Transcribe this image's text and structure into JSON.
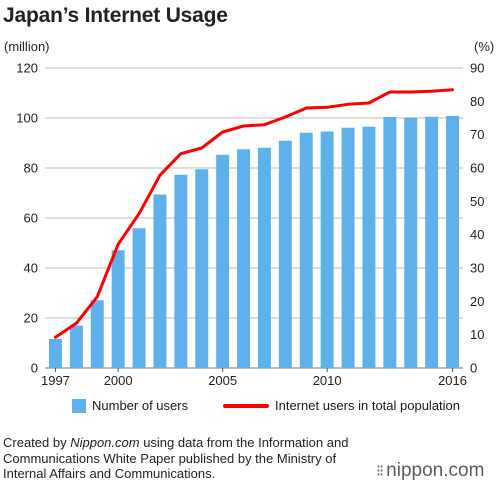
{
  "title": "Japan’s Internet Usage",
  "chart_data": {
    "type": "bar",
    "title": "Japan’s Internet Usage",
    "y_left_unit": "(million)",
    "y_right_unit": "(%)",
    "ylim_left": [
      0,
      120
    ],
    "ylim_right": [
      0,
      90
    ],
    "y_left_ticks": [
      0,
      20,
      40,
      60,
      80,
      100,
      120
    ],
    "y_right_ticks": [
      0,
      10,
      20,
      30,
      40,
      50,
      60,
      70,
      80,
      90
    ],
    "x_tick_labels": [
      "1997",
      "2000",
      "2005",
      "2010",
      "2016"
    ],
    "x": [
      1997,
      1998,
      1999,
      2000,
      2001,
      2002,
      2003,
      2004,
      2005,
      2006,
      2007,
      2008,
      2009,
      2010,
      2011,
      2012,
      2013,
      2014,
      2015,
      2016
    ],
    "grid": true,
    "legend_position": "bottom",
    "series": [
      {
        "name": "Number of users",
        "type": "bar",
        "axis": "left",
        "color": "#5eb1ea",
        "values": [
          11.6,
          17.0,
          27.1,
          47.1,
          55.9,
          69.4,
          77.3,
          79.5,
          85.3,
          87.5,
          88.1,
          90.9,
          94.1,
          94.6,
          96.1,
          96.5,
          100.4,
          100.2,
          100.5,
          100.8
        ]
      },
      {
        "name": "Internet users in total population",
        "type": "line",
        "axis": "right",
        "color": "#ff0000",
        "values": [
          9.2,
          13.4,
          21.4,
          37.1,
          46.3,
          57.8,
          64.3,
          66.0,
          70.8,
          72.6,
          73.0,
          75.3,
          78.0,
          78.2,
          79.1,
          79.5,
          82.8,
          82.8,
          83.0,
          83.5
        ]
      }
    ]
  },
  "legend": {
    "bar_label": "Number of users",
    "line_label": "Internet users in total population"
  },
  "footer": {
    "prefix": "Created by ",
    "source": "Nippon.com",
    "suffix": " using data from the Information and Communications White Paper published by the Ministry of Internal Affairs and Communications."
  },
  "logo": {
    "mark": "⁝⁝",
    "text": "nippon.com"
  }
}
